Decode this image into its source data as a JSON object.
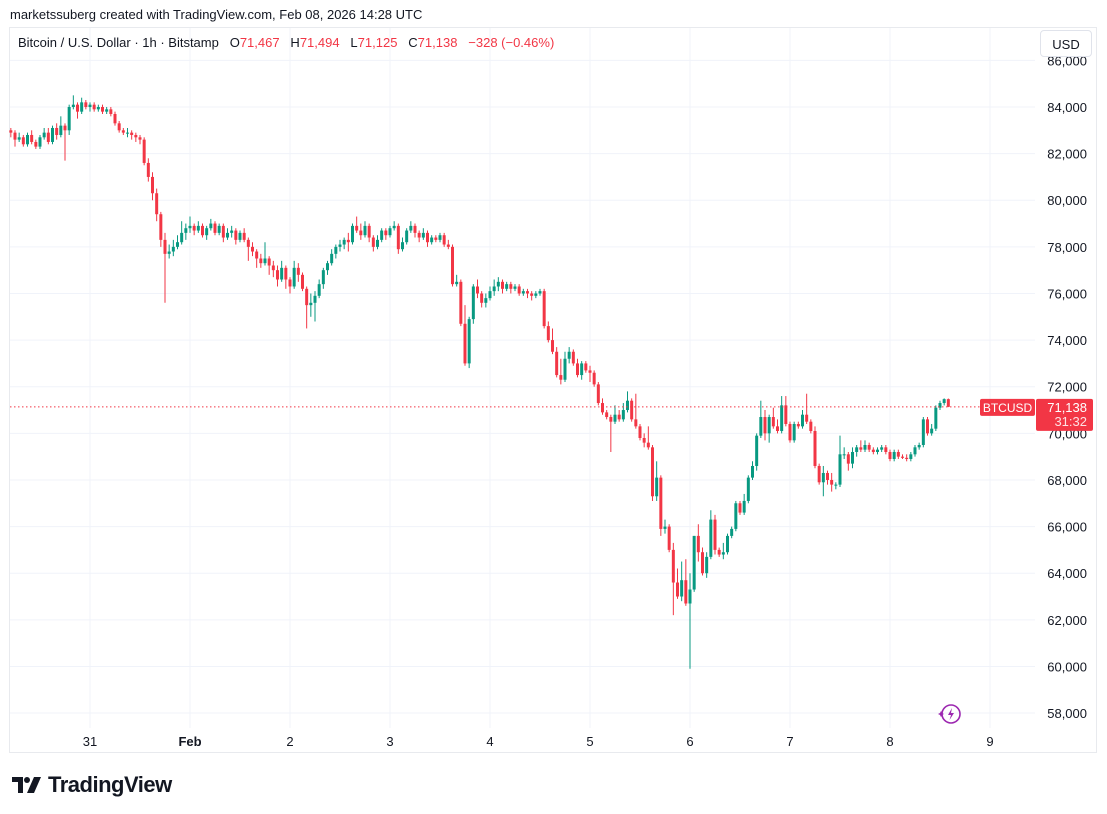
{
  "credit": "marketssuberg created with TradingView.com, Feb 08, 2026 14:28 UTC",
  "legend": {
    "symbol": "Bitcoin / U.S. Dollar · 1h · Bitstamp",
    "o_label": "O",
    "o": "71,467",
    "h_label": "H",
    "h": "71,494",
    "l_label": "L",
    "l": "71,125",
    "c_label": "C",
    "c": "71,138",
    "change": "−328 (−0.46%)"
  },
  "currency_button": "USD",
  "price_label": {
    "symbol": "BTCUSD",
    "price": "71,138",
    "countdown": "31:32"
  },
  "logo_text": "TradingView",
  "icons": {
    "alert": "lightning-bolt-icon",
    "logo": "tradingview-logo-icon"
  },
  "colors": {
    "up": "#089981",
    "down": "#f23645",
    "grid": "#f0f3fa",
    "price_line": "#f23645"
  },
  "chart_data": {
    "type": "candlestick",
    "title": "Bitcoin / U.S. Dollar · 1h · Bitstamp",
    "x_start": "2026-01-30 05:00",
    "interval": "1h",
    "x_ticks": [
      {
        "label": "31",
        "date": "2026-01-31",
        "bold": false
      },
      {
        "label": "Feb",
        "date": "2026-02-01",
        "bold": true
      },
      {
        "label": "2",
        "date": "2026-02-02",
        "bold": false
      },
      {
        "label": "3",
        "date": "2026-02-03",
        "bold": false
      },
      {
        "label": "4",
        "date": "2026-02-04",
        "bold": false
      },
      {
        "label": "5",
        "date": "2026-02-05",
        "bold": false
      },
      {
        "label": "6",
        "date": "2026-02-06",
        "bold": false
      },
      {
        "label": "7",
        "date": "2026-02-07",
        "bold": false
      },
      {
        "label": "8",
        "date": "2026-02-08",
        "bold": false
      },
      {
        "label": "9",
        "date": "2026-02-09",
        "bold": false
      }
    ],
    "y_ticks": [
      "86,000",
      "84,000",
      "82,000",
      "80,000",
      "78,000",
      "76,000",
      "74,000",
      "72,000",
      "70,000",
      "68,000",
      "66,000",
      "64,000",
      "62,000",
      "60,000",
      "58,000"
    ],
    "y_tick_values": [
      86000,
      84000,
      82000,
      80000,
      78000,
      76000,
      74000,
      72000,
      70000,
      68000,
      66000,
      64000,
      62000,
      60000,
      58000
    ],
    "ylim": [
      57400,
      87400
    ],
    "grid": true,
    "last_price": 71138,
    "ohlc": [
      [
        83000,
        83100,
        82700,
        82900
      ],
      [
        82900,
        83000,
        82300,
        82600
      ],
      [
        82600,
        82900,
        82500,
        82700
      ],
      [
        82700,
        82800,
        82300,
        82400
      ],
      [
        82400,
        82900,
        82300,
        82800
      ],
      [
        82800,
        83000,
        82400,
        82500
      ],
      [
        82500,
        82600,
        82200,
        82300
      ],
      [
        82300,
        82800,
        82200,
        82700
      ],
      [
        82700,
        83100,
        82600,
        82900
      ],
      [
        82900,
        83100,
        82400,
        82500
      ],
      [
        82500,
        83200,
        82400,
        83100
      ],
      [
        83100,
        83300,
        82600,
        82800
      ],
      [
        82800,
        83600,
        82700,
        83200
      ],
      [
        83200,
        83300,
        81700,
        83000
      ],
      [
        83000,
        84100,
        82800,
        84000
      ],
      [
        84000,
        84500,
        83900,
        84100
      ],
      [
        84100,
        84200,
        83500,
        83800
      ],
      [
        83800,
        84400,
        83700,
        84200
      ],
      [
        84200,
        84300,
        83900,
        84000
      ],
      [
        84000,
        84200,
        83800,
        84100
      ],
      [
        84100,
        84200,
        83800,
        83900
      ],
      [
        83900,
        84100,
        83800,
        84000
      ],
      [
        84000,
        84100,
        83700,
        83800
      ],
      [
        83800,
        84000,
        83700,
        83900
      ],
      [
        83900,
        84000,
        83600,
        83700
      ],
      [
        83700,
        83800,
        83200,
        83300
      ],
      [
        83300,
        83400,
        82900,
        83000
      ],
      [
        83000,
        83100,
        82800,
        82900
      ],
      [
        82900,
        83100,
        82700,
        82900
      ],
      [
        82900,
        83000,
        82600,
        82800
      ],
      [
        82800,
        82900,
        82500,
        82700
      ],
      [
        82700,
        82800,
        82400,
        82600
      ],
      [
        82600,
        82700,
        81500,
        81600
      ],
      [
        81600,
        81800,
        80800,
        81000
      ],
      [
        81000,
        81200,
        80000,
        80300
      ],
      [
        80300,
        80500,
        79100,
        79400
      ],
      [
        79400,
        79500,
        78000,
        78300
      ],
      [
        78300,
        78600,
        75600,
        77700
      ],
      [
        77700,
        78100,
        77500,
        77800
      ],
      [
        77800,
        78300,
        77600,
        78000
      ],
      [
        78000,
        78500,
        77900,
        78200
      ],
      [
        78200,
        79100,
        78100,
        78600
      ],
      [
        78600,
        79000,
        78300,
        78800
      ],
      [
        78800,
        79300,
        78600,
        78900
      ],
      [
        78900,
        79000,
        78500,
        78700
      ],
      [
        78700,
        79100,
        78600,
        78900
      ],
      [
        78900,
        79000,
        78400,
        78500
      ],
      [
        78500,
        78900,
        78300,
        78800
      ],
      [
        78800,
        79200,
        78700,
        79000
      ],
      [
        79000,
        79100,
        78500,
        78600
      ],
      [
        78600,
        79000,
        78500,
        78900
      ],
      [
        78900,
        79000,
        78200,
        78400
      ],
      [
        78400,
        78800,
        78300,
        78600
      ],
      [
        78600,
        78900,
        78400,
        78700
      ],
      [
        78700,
        78800,
        78100,
        78300
      ],
      [
        78300,
        78700,
        78200,
        78600
      ],
      [
        78600,
        78800,
        78200,
        78300
      ],
      [
        78300,
        78400,
        77400,
        78000
      ],
      [
        78000,
        78200,
        77600,
        77800
      ],
      [
        77800,
        77900,
        77100,
        77500
      ],
      [
        77500,
        77700,
        77100,
        77300
      ],
      [
        77300,
        78200,
        77200,
        77500
      ],
      [
        77500,
        77600,
        76800,
        77200
      ],
      [
        77200,
        77400,
        76700,
        77000
      ],
      [
        77000,
        77200,
        76300,
        76600
      ],
      [
        76600,
        77400,
        76500,
        77100
      ],
      [
        77100,
        77200,
        76200,
        76600
      ],
      [
        76600,
        76700,
        76000,
        76300
      ],
      [
        76300,
        77400,
        76200,
        77100
      ],
      [
        77100,
        77300,
        76500,
        76800
      ],
      [
        76800,
        76900,
        76100,
        76200
      ],
      [
        76200,
        76300,
        74500,
        75500
      ],
      [
        75500,
        76000,
        75000,
        75600
      ],
      [
        75600,
        76100,
        74800,
        75900
      ],
      [
        75900,
        76600,
        75800,
        76400
      ],
      [
        76400,
        77100,
        76200,
        77000
      ],
      [
        77000,
        77400,
        76800,
        77300
      ],
      [
        77300,
        77900,
        77200,
        77700
      ],
      [
        77700,
        78100,
        77500,
        78000
      ],
      [
        78000,
        78300,
        77800,
        78100
      ],
      [
        78100,
        78400,
        77900,
        78300
      ],
      [
        78300,
        78600,
        77800,
        78200
      ],
      [
        78200,
        79000,
        78100,
        78900
      ],
      [
        78900,
        79300,
        78600,
        78700
      ],
      [
        78700,
        79000,
        78300,
        78500
      ],
      [
        78500,
        79100,
        78400,
        78900
      ],
      [
        78900,
        79000,
        78200,
        78400
      ],
      [
        78400,
        78500,
        77800,
        78000
      ],
      [
        78000,
        78500,
        77900,
        78300
      ],
      [
        78300,
        78800,
        78200,
        78700
      ],
      [
        78700,
        78800,
        78300,
        78500
      ],
      [
        78500,
        78900,
        78400,
        78800
      ],
      [
        78800,
        79100,
        78700,
        78900
      ],
      [
        78900,
        79000,
        77700,
        77900
      ],
      [
        77900,
        78400,
        77800,
        78200
      ],
      [
        78200,
        78800,
        78100,
        78700
      ],
      [
        78700,
        79100,
        78600,
        78900
      ],
      [
        78900,
        79000,
        78400,
        78600
      ],
      [
        78600,
        78700,
        78200,
        78400
      ],
      [
        78400,
        78800,
        78300,
        78600
      ],
      [
        78600,
        78700,
        78000,
        78200
      ],
      [
        78200,
        78500,
        78100,
        78400
      ],
      [
        78400,
        78500,
        78200,
        78300
      ],
      [
        78300,
        78600,
        78200,
        78500
      ],
      [
        78500,
        78600,
        78000,
        78100
      ],
      [
        78100,
        78300,
        77900,
        78000
      ],
      [
        78000,
        78100,
        76300,
        76400
      ],
      [
        76400,
        76800,
        76300,
        76500
      ],
      [
        76500,
        76600,
        74600,
        74700
      ],
      [
        74700,
        75500,
        72900,
        73000
      ],
      [
        73000,
        75000,
        72800,
        74900
      ],
      [
        74900,
        76400,
        74700,
        76300
      ],
      [
        76300,
        76600,
        75800,
        76000
      ],
      [
        76000,
        76100,
        75400,
        75600
      ],
      [
        75600,
        76000,
        75400,
        75800
      ],
      [
        75800,
        76300,
        75700,
        76100
      ],
      [
        76100,
        76600,
        75900,
        76300
      ],
      [
        76300,
        76700,
        76100,
        76500
      ],
      [
        76500,
        76600,
        76000,
        76200
      ],
      [
        76200,
        76500,
        76100,
        76400
      ],
      [
        76400,
        76500,
        76000,
        76200
      ],
      [
        76200,
        76400,
        76100,
        76300
      ],
      [
        76300,
        76400,
        75900,
        76000
      ],
      [
        76000,
        76200,
        75900,
        76100
      ],
      [
        76100,
        76200,
        75800,
        76000
      ],
      [
        76000,
        76100,
        75700,
        75900
      ],
      [
        75900,
        76100,
        75800,
        76000
      ],
      [
        76000,
        76200,
        75900,
        76100
      ],
      [
        76100,
        76200,
        74500,
        74600
      ],
      [
        74600,
        74800,
        73900,
        74000
      ],
      [
        74000,
        74500,
        73400,
        73500
      ],
      [
        73500,
        73700,
        72400,
        72500
      ],
      [
        72500,
        73200,
        72100,
        72300
      ],
      [
        72300,
        73500,
        72200,
        73200
      ],
      [
        73200,
        73700,
        73000,
        73500
      ],
      [
        73500,
        73600,
        72900,
        73000
      ],
      [
        73000,
        73200,
        72400,
        72500
      ],
      [
        72500,
        73100,
        72300,
        73000
      ],
      [
        73000,
        73100,
        72600,
        72700
      ],
      [
        72700,
        72900,
        72200,
        72600
      ],
      [
        72600,
        72700,
        72000,
        72100
      ],
      [
        72100,
        72200,
        71200,
        71300
      ],
      [
        71300,
        71500,
        70800,
        70900
      ],
      [
        70900,
        71000,
        70600,
        70700
      ],
      [
        70700,
        70800,
        69200,
        70500
      ],
      [
        70500,
        71200,
        70400,
        70800
      ],
      [
        70800,
        71000,
        70500,
        70600
      ],
      [
        70600,
        71300,
        70500,
        71000
      ],
      [
        71000,
        71800,
        70900,
        71400
      ],
      [
        71400,
        71500,
        70500,
        70600
      ],
      [
        70600,
        71700,
        70200,
        70300
      ],
      [
        70300,
        70400,
        69700,
        69800
      ],
      [
        69800,
        70000,
        69400,
        69600
      ],
      [
        69600,
        70300,
        69300,
        69400
      ],
      [
        69400,
        69500,
        67100,
        67300
      ],
      [
        67300,
        68800,
        67100,
        68100
      ],
      [
        68100,
        68200,
        65600,
        65900
      ],
      [
        65900,
        66300,
        65700,
        66000
      ],
      [
        66000,
        66100,
        64900,
        65000
      ],
      [
        65000,
        65300,
        62200,
        63600
      ],
      [
        63600,
        64200,
        62900,
        63000
      ],
      [
        63000,
        64500,
        62800,
        63700
      ],
      [
        63700,
        64600,
        62600,
        62700
      ],
      [
        62700,
        64000,
        59900,
        63300
      ],
      [
        63300,
        65600,
        63200,
        65600
      ],
      [
        65600,
        66100,
        64500,
        64900
      ],
      [
        64900,
        65100,
        63900,
        64000
      ],
      [
        64000,
        64900,
        63800,
        64700
      ],
      [
        64700,
        66700,
        64600,
        66300
      ],
      [
        66300,
        66500,
        64800,
        65000
      ],
      [
        65000,
        65100,
        64700,
        64800
      ],
      [
        64800,
        65300,
        64600,
        64900
      ],
      [
        64900,
        65700,
        64800,
        65600
      ],
      [
        65600,
        66000,
        65500,
        65900
      ],
      [
        65900,
        67100,
        65800,
        67000
      ],
      [
        67000,
        67100,
        66500,
        66600
      ],
      [
        66600,
        67400,
        66500,
        67100
      ],
      [
        67100,
        68200,
        67000,
        68100
      ],
      [
        68100,
        68800,
        68000,
        68600
      ],
      [
        68600,
        70000,
        68400,
        69900
      ],
      [
        69900,
        71400,
        69800,
        70700
      ],
      [
        70700,
        71000,
        69700,
        70000
      ],
      [
        70000,
        70800,
        69600,
        70700
      ],
      [
        70700,
        71100,
        70200,
        70300
      ],
      [
        70300,
        70600,
        70000,
        70100
      ],
      [
        70100,
        71600,
        70000,
        71200
      ],
      [
        71200,
        71600,
        70300,
        70400
      ],
      [
        70400,
        70500,
        69600,
        69700
      ],
      [
        69700,
        70500,
        69600,
        70400
      ],
      [
        70400,
        70500,
        70200,
        70300
      ],
      [
        70300,
        71000,
        70200,
        70800
      ],
      [
        70800,
        71700,
        70400,
        70500
      ],
      [
        70500,
        70600,
        70000,
        70100
      ],
      [
        70100,
        70300,
        68500,
        68600
      ],
      [
        68600,
        68700,
        67800,
        67900
      ],
      [
        67900,
        68600,
        67300,
        68300
      ],
      [
        68300,
        68400,
        67800,
        68000
      ],
      [
        68000,
        68300,
        67500,
        67800
      ],
      [
        67800,
        67900,
        67600,
        67800
      ],
      [
        67800,
        69900,
        67700,
        69100
      ],
      [
        69100,
        69400,
        68900,
        69100
      ],
      [
        69100,
        69200,
        68400,
        68700
      ],
      [
        68700,
        69400,
        68500,
        69200
      ],
      [
        69200,
        69500,
        69000,
        69400
      ],
      [
        69400,
        69700,
        69200,
        69300
      ],
      [
        69300,
        69700,
        69200,
        69500
      ],
      [
        69500,
        69600,
        69200,
        69300
      ],
      [
        69300,
        69400,
        69100,
        69200
      ],
      [
        69200,
        69400,
        69100,
        69300
      ],
      [
        69300,
        69500,
        69200,
        69400
      ],
      [
        69400,
        69500,
        69100,
        69200
      ],
      [
        69200,
        69300,
        68800,
        68900
      ],
      [
        68900,
        69300,
        68800,
        69200
      ],
      [
        69200,
        69300,
        68900,
        69000
      ],
      [
        69000,
        69100,
        68900,
        68950
      ],
      [
        68950,
        69100,
        68800,
        68900
      ],
      [
        68900,
        69200,
        68800,
        69100
      ],
      [
        69100,
        69500,
        69000,
        69400
      ],
      [
        69400,
        69600,
        69300,
        69500
      ],
      [
        69500,
        70700,
        69400,
        70600
      ],
      [
        70600,
        70700,
        69900,
        70000
      ],
      [
        70000,
        70400,
        69900,
        70200
      ],
      [
        70200,
        71200,
        70100,
        71100
      ],
      [
        71100,
        71400,
        71000,
        71300
      ],
      [
        71300,
        71500,
        71200,
        71467
      ],
      [
        71467,
        71494,
        71125,
        71138
      ]
    ]
  }
}
